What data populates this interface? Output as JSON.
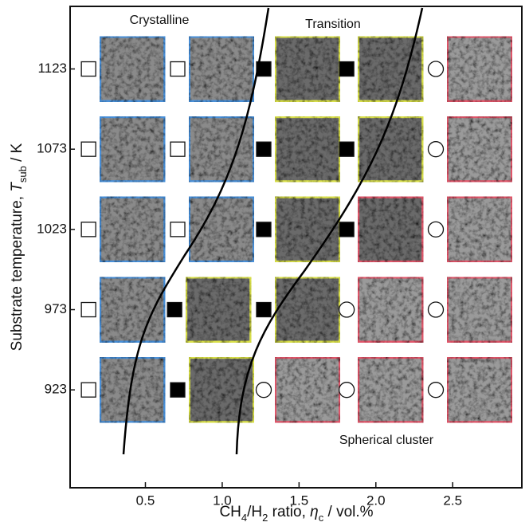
{
  "chart_data": {
    "type": "phase-map",
    "xlabel": [
      {
        "text": "CH"
      },
      {
        "text": "4",
        "style": "sub"
      },
      {
        "text": "/H"
      },
      {
        "text": "2",
        "style": "sub"
      },
      {
        "text": " ratio, "
      },
      {
        "text": "η",
        "style": "italic"
      },
      {
        "text": "c",
        "style": "sub"
      },
      {
        "text": " / vol.%"
      }
    ],
    "ylabel": [
      {
        "text": "Substrate temperature, "
      },
      {
        "text": "T",
        "style": "italic"
      },
      {
        "text": "sub",
        "style": "sub"
      },
      {
        "text": " / K"
      }
    ],
    "xlim": [
      0.01,
      2.95
    ],
    "xticks": [
      0.5,
      {
        "value": 1.0,
        "label": "1.0"
      },
      1.5,
      {
        "value": 2.0,
        "label": "2.0"
      },
      2.5
    ],
    "ylim": [
      862,
      1162
    ],
    "yticks": [
      923,
      973,
      1023,
      1073,
      1123
    ],
    "series": [
      {
        "name": "Crystalline",
        "marker": "open-square",
        "color": "#4a90d9",
        "x": [
          0.13,
          0.71,
          0.13,
          0.71,
          0.13,
          0.71,
          0.13,
          0.13
        ],
        "values": [
          1123,
          1123,
          1073,
          1073,
          1023,
          1023,
          973,
          923
        ],
        "frame_colors": [
          "#4a90d9",
          "#4a90d9",
          "#4a90d9",
          "#4a90d9",
          "#4a90d9",
          "#4a90d9",
          "#4a90d9",
          "#4a90d9"
        ]
      },
      {
        "name": "Transition",
        "marker": "filled-square",
        "color": "#d8df4a",
        "x": [
          1.27,
          1.81,
          1.27,
          1.81,
          1.27,
          1.81,
          0.69,
          1.27,
          0.71
        ],
        "values": [
          1123,
          1123,
          1073,
          1073,
          1023,
          1023,
          973,
          973,
          923
        ],
        "frame_colors": [
          "#d8df4a",
          "#d8df4a",
          "#d8df4a",
          "#d8df4a",
          "#d8df4a",
          "#e0576a",
          "#d8df4a",
          "#d8df4a",
          "#d8df4a"
        ]
      },
      {
        "name": "Spherical cluster",
        "marker": "open-circle",
        "color": "#e0576a",
        "x": [
          2.39,
          2.39,
          2.39,
          1.81,
          2.39,
          1.27,
          1.81,
          2.39
        ],
        "values": [
          1123,
          1073,
          1023,
          973,
          973,
          923,
          923,
          923
        ],
        "frame_colors": [
          "#e0576a",
          "#e0576a",
          "#e0576a",
          "#e0576a",
          "#e0576a",
          "#e0576a",
          "#e0576a",
          "#e0576a"
        ]
      }
    ]
  }
}
